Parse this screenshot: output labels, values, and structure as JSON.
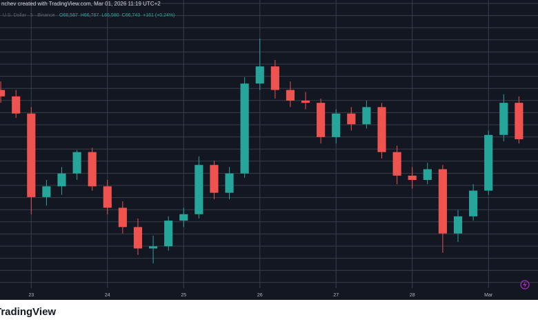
{
  "chart_data": {
    "type": "candlestick",
    "caption": "nchev created with TradingView.com, Mar 01, 2026 11:19 UTC+2",
    "instrument": "U.S. Dollar · 5 · Binance",
    "ohlc_legend": [
      "O66,587",
      "H66,767",
      "L66,580",
      "C66,743",
      "+161 (+0.24%)"
    ],
    "brand": "TradingView",
    "x": [
      22.6,
      22.8,
      23.0,
      23.2,
      23.4,
      23.6,
      23.8,
      24.0,
      24.2,
      24.4,
      24.6,
      24.8,
      25.0,
      25.2,
      25.4,
      25.6,
      25.8,
      26.0,
      26.2,
      26.4,
      26.6,
      26.8,
      27.0,
      27.2,
      27.4,
      27.6,
      27.8,
      28.0,
      28.2,
      28.4,
      28.6,
      28.8,
      29.0,
      29.2,
      29.4
    ],
    "open": [
      67900,
      67750,
      67350,
      65400,
      65650,
      65950,
      66450,
      65650,
      65150,
      64700,
      64200,
      64250,
      64850,
      65000,
      66150,
      65500,
      65950,
      68050,
      68450,
      67900,
      67650,
      67600,
      66800,
      67350,
      67100,
      67500,
      66450,
      65900,
      65800,
      66050,
      64550,
      64950,
      65550,
      66850,
      67600
    ],
    "high": [
      68100,
      67900,
      67500,
      65800,
      66100,
      66500,
      66550,
      65800,
      65300,
      64900,
      64500,
      64950,
      65150,
      66350,
      66250,
      66100,
      68200,
      69100,
      68600,
      68100,
      67850,
      67700,
      67450,
      67500,
      67650,
      67600,
      66600,
      66100,
      66200,
      66150,
      65100,
      65700,
      66950,
      67800,
      67750
    ],
    "low": [
      67600,
      67250,
      65000,
      65200,
      65450,
      65800,
      65550,
      65000,
      64550,
      64050,
      63850,
      64150,
      64700,
      64900,
      65350,
      65350,
      65850,
      67900,
      67700,
      67500,
      67450,
      66650,
      66650,
      66950,
      67000,
      66300,
      65700,
      65600,
      65700,
      64100,
      64350,
      64850,
      65450,
      66700,
      66650
    ],
    "close": [
      67750,
      67350,
      65400,
      65650,
      65950,
      66450,
      65650,
      65150,
      64700,
      64200,
      64250,
      64850,
      65000,
      66150,
      65500,
      65950,
      68050,
      68450,
      67900,
      67650,
      67600,
      66800,
      67350,
      67100,
      67500,
      66450,
      65900,
      65800,
      66050,
      64550,
      64950,
      65550,
      66850,
      67600,
      66750
    ],
    "up_color": "#26a69a",
    "down_color": "#ef5350",
    "xlim": [
      22.59,
      29.65
    ],
    "ylim": [
      63000,
      70000
    ],
    "xticks": [
      23,
      24,
      25,
      26,
      27,
      28,
      {
        "value": 29,
        "label": "Mar"
      }
    ],
    "grid": true
  }
}
